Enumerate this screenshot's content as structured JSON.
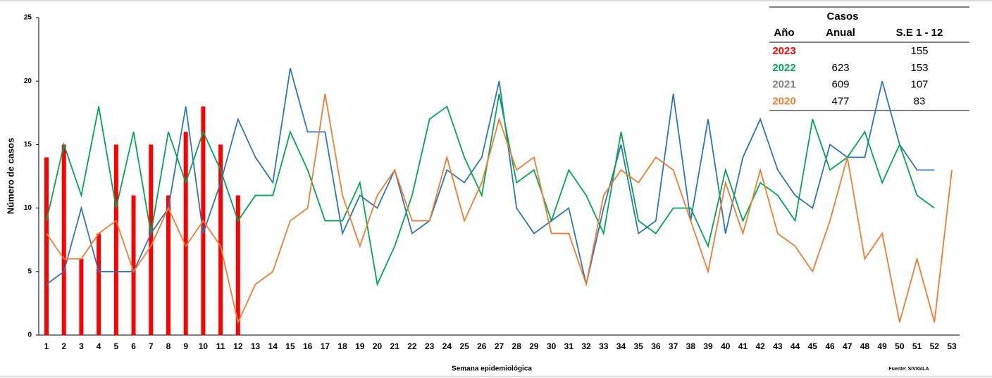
{
  "chart_data": {
    "type": "combo",
    "ylabel": "Número de casos",
    "xlabel": "Semana epidemiológica",
    "note": "Fuente: SIVIGILA",
    "categories": [
      "1",
      "2",
      "3",
      "4",
      "5",
      "6",
      "7",
      "8",
      "9",
      "10",
      "11",
      "12",
      "13",
      "14",
      "15",
      "16",
      "17",
      "18",
      "19",
      "20",
      "21",
      "22",
      "23",
      "24",
      "25",
      "26",
      "27",
      "28",
      "29",
      "30",
      "31",
      "32",
      "33",
      "34",
      "35",
      "36",
      "37",
      "38",
      "39",
      "40",
      "41",
      "42",
      "43",
      "44",
      "45",
      "46",
      "47",
      "48",
      "49",
      "50",
      "51",
      "52",
      "53"
    ],
    "ylim": [
      0,
      25
    ],
    "yticks": [
      0,
      5,
      10,
      15,
      20,
      25
    ],
    "series": [
      {
        "type": "bar",
        "color": "#ff0000",
        "values": [
          14,
          15,
          6,
          8,
          15,
          11,
          15,
          11,
          16,
          18,
          15,
          11,
          null,
          null,
          null,
          null,
          null,
          null,
          null,
          null,
          null,
          null,
          null,
          null,
          null,
          null,
          null,
          null,
          null,
          null,
          null,
          null,
          null,
          null,
          null,
          null,
          null,
          null,
          null,
          null,
          null,
          null,
          null,
          null,
          null,
          null,
          null,
          null,
          null,
          null,
          null,
          null,
          null
        ]
      },
      {
        "type": "line",
        "color": "#2e75b6",
        "values": [
          4,
          5,
          10,
          5,
          5,
          5,
          8,
          10,
          18,
          8,
          12,
          17,
          14,
          12,
          21,
          16,
          16,
          8,
          11,
          10,
          13,
          8,
          9,
          13,
          12,
          14,
          20,
          10,
          8,
          9,
          10,
          4,
          10,
          15,
          8,
          9,
          19,
          9,
          17,
          8,
          14,
          17,
          13,
          11,
          10,
          15,
          14,
          14,
          20,
          15,
          13,
          13,
          null
        ]
      },
      {
        "type": "line",
        "color": "#00a651",
        "values": [
          9,
          15,
          11,
          18,
          10,
          16,
          8,
          16,
          12,
          16,
          13,
          9,
          11,
          11,
          16,
          13,
          9,
          9,
          12,
          4,
          7,
          11,
          17,
          18,
          14,
          11,
          19,
          12,
          13,
          9,
          13,
          11,
          8,
          16,
          9,
          8,
          10,
          10,
          7,
          13,
          9,
          12,
          11,
          9,
          17,
          13,
          14,
          16,
          12,
          15,
          11,
          10,
          null
        ]
      },
      {
        "type": "line",
        "color": "#ed7d31",
        "values": [
          8,
          6,
          6,
          8,
          9,
          5,
          7,
          10,
          7,
          9,
          7,
          1,
          4,
          5,
          9,
          10,
          19,
          11,
          7,
          11,
          13,
          9,
          9,
          14,
          9,
          12,
          17,
          13,
          14,
          8,
          8,
          4,
          11,
          13,
          12,
          14,
          13,
          9,
          5,
          12,
          8,
          13,
          8,
          7,
          5,
          9,
          14,
          6,
          8,
          1,
          6,
          1,
          13
        ]
      }
    ],
    "table": {
      "title": "Casos",
      "columns": [
        "Año",
        "Anual",
        "S.E 1 - 12"
      ],
      "rows": [
        {
          "year": "2023",
          "color": "#ff0000",
          "anual": null,
          "se": 155
        },
        {
          "year": "2022",
          "color": "#00a651",
          "anual": 623,
          "se": 153
        },
        {
          "year": "2021",
          "color": "#808080",
          "anual": 609,
          "se": 107
        },
        {
          "year": "2020",
          "color": "#ed7d31",
          "anual": 477,
          "se": 83
        }
      ]
    }
  }
}
